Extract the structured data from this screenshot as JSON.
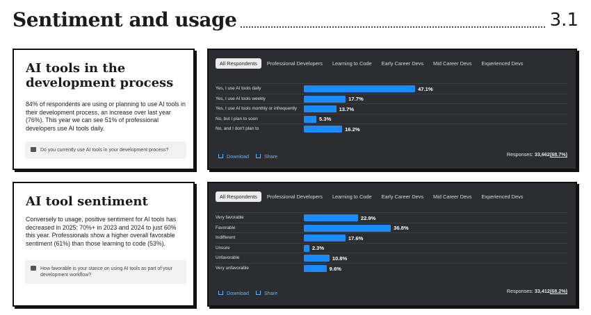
{
  "header": {
    "title": "Sentiment and usage",
    "section": "3.1"
  },
  "sections": [
    {
      "title": "AI tools in the development process",
      "body": "84% of respondents are using or planning to use AI tools in their development process, an increase over last year (76%). This year we can see 51% of professional developers use AI tools daily.",
      "question": "Do you currently use AI tools in your development process?"
    },
    {
      "title": "AI tool sentiment",
      "body": "Conversely to usage, positive sentiment for AI tools has decreased in 2025: 70%+ in 2023 and 2024 to just 60% this year. Professionals show a higher overall favorable sentiment (61%) than those learning to code (53%).",
      "question": "How favorable is your stance on using AI tools as part of your development workflow?"
    }
  ],
  "chart_data": [
    {
      "type": "bar",
      "orientation": "horizontal",
      "tabs": [
        "All Respondents",
        "Professional Developers",
        "Learning to Code",
        "Early Career Devs",
        "Mid Career Devs",
        "Experienced Devs"
      ],
      "active_tab": 0,
      "categories": [
        "Yes, I use AI tools daily",
        "Yes, I use AI tools weekly",
        "Yes, I use AI tools monthly or infrequently",
        "No, but I plan to soon",
        "No, and I don't plan to"
      ],
      "values": [
        47.1,
        17.7,
        13.7,
        5.3,
        16.2
      ],
      "value_labels": [
        "47.1%",
        "17.7%",
        "13.7%",
        "5.3%",
        "16.2%"
      ],
      "color": "#1a8cff",
      "actions": [
        "Download",
        "Share"
      ],
      "responses_label": "Responses:",
      "responses_count": "33,662",
      "responses_share": "(68.7%)"
    },
    {
      "type": "bar",
      "orientation": "horizontal",
      "tabs": [
        "All Respondents",
        "Professional Developers",
        "Learning to Code",
        "Early Career Devs",
        "Mid Career Devs",
        "Experienced Devs"
      ],
      "active_tab": 0,
      "categories": [
        "Very favorable",
        "Favorable",
        "Indifferent",
        "Unsure",
        "Unfavorable",
        "Very unfavorable"
      ],
      "values": [
        22.9,
        36.8,
        17.6,
        2.3,
        10.8,
        9.6
      ],
      "value_labels": [
        "22.9%",
        "36.8%",
        "17.6%",
        "2.3%",
        "10.8%",
        "9.6%"
      ],
      "color": "#1a8cff",
      "actions": [
        "Download",
        "Share"
      ],
      "responses_label": "Responses:",
      "responses_count": "33,412",
      "responses_share": "(68.2%)"
    }
  ]
}
